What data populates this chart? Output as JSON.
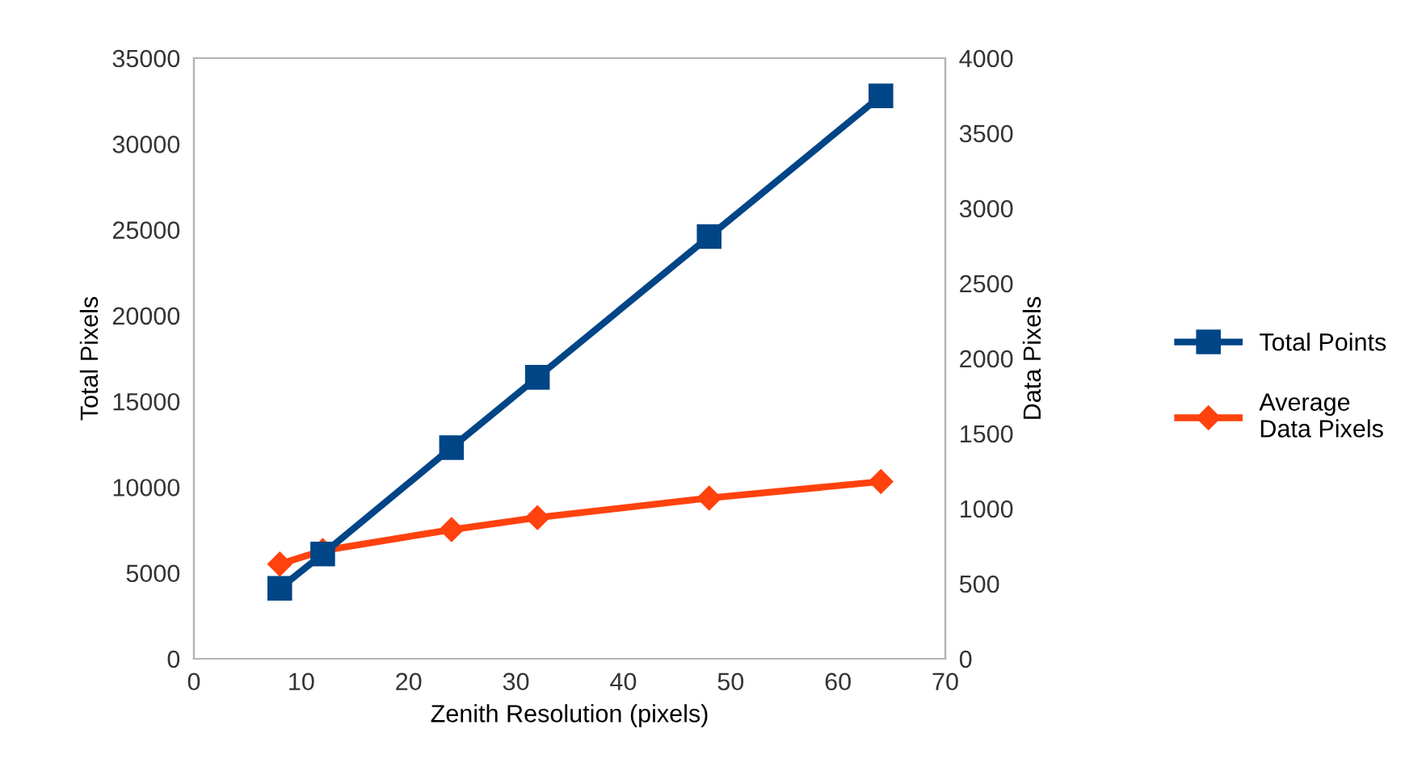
{
  "chart_data": {
    "type": "line",
    "xlabel": "Zenith Resolution (pixels)",
    "ylabel": "Total Pixels",
    "y2label": "Data Pixels",
    "x": [
      8,
      12,
      24,
      32,
      48,
      64
    ],
    "series": [
      {
        "name": "Total Points",
        "color": "#004586",
        "marker": "square",
        "values": [
          4100,
          6100,
          12300,
          16400,
          24600,
          32800
        ]
      },
      {
        "name": "Average Data Pixels",
        "color": "#ff420e",
        "marker": "diamond",
        "axis": "y2",
        "values": [
          630,
          720,
          860,
          940,
          1070,
          1180
        ]
      }
    ],
    "xlim": [
      0,
      70
    ],
    "xticks": [
      0,
      10,
      20,
      30,
      40,
      50,
      60,
      70
    ],
    "ylim": [
      0,
      35000
    ],
    "yticks": [
      0,
      5000,
      10000,
      15000,
      20000,
      25000,
      30000,
      35000
    ],
    "y2lim": [
      0,
      4000
    ],
    "y2ticks": [
      0,
      500,
      1000,
      1500,
      2000,
      2500,
      3000,
      3500,
      4000
    ],
    "grid": false,
    "legend": "right",
    "line_style": "solid"
  }
}
